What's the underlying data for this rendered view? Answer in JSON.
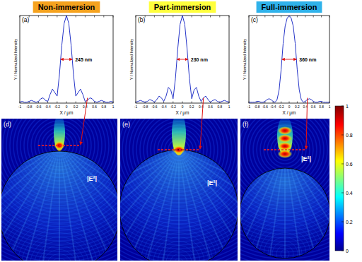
{
  "chart_data": [
    {
      "type": "line",
      "title": "Non-immersion",
      "panel_label": "(a)",
      "x_label": "X / μm",
      "y_label": "Y / Normalized Intensity",
      "annotation": "245 nm",
      "x": [
        -1,
        -0.95,
        -0.9,
        -0.85,
        -0.8,
        -0.75,
        -0.7,
        -0.65,
        -0.6,
        -0.55,
        -0.5,
        -0.45,
        -0.4,
        -0.35,
        -0.3,
        -0.25,
        -0.2,
        -0.15,
        -0.1,
        -0.05,
        0,
        0.05,
        0.1,
        0.15,
        0.2,
        0.25,
        0.3,
        0.35,
        0.4,
        0.45,
        0.5,
        0.55,
        0.6,
        0.65,
        0.7,
        0.75,
        0.8,
        0.85,
        0.9,
        0.95,
        1
      ],
      "values": [
        0.01,
        0.02,
        0.01,
        0.01,
        0.02,
        0.03,
        0.02,
        0.01,
        0.02,
        0.05,
        0.06,
        0.03,
        0.02,
        0.1,
        0.16,
        0.12,
        0.08,
        0.33,
        0.66,
        0.91,
        1,
        0.91,
        0.66,
        0.33,
        0.08,
        0.12,
        0.16,
        0.1,
        0.02,
        0.03,
        0.06,
        0.05,
        0.02,
        0.01,
        0.02,
        0.03,
        0.02,
        0.01,
        0.01,
        0.02,
        0.01
      ],
      "color": "#2433c8",
      "xlim": [
        -1,
        1
      ],
      "ylim": [
        0,
        1
      ],
      "xticks": [
        -1,
        -0.8,
        -0.6,
        -0.4,
        -0.2,
        0,
        0.2,
        0.4,
        0.6,
        0.8,
        1
      ],
      "tick_labels": "x"
    },
    {
      "type": "line",
      "title": "Part-immersion",
      "panel_label": "(b)",
      "x_label": "X / μm",
      "y_label": "Y / Normalized Intensity",
      "annotation": "230 nm",
      "x": [
        -1,
        -0.95,
        -0.9,
        -0.85,
        -0.8,
        -0.75,
        -0.7,
        -0.65,
        -0.6,
        -0.55,
        -0.5,
        -0.45,
        -0.4,
        -0.35,
        -0.3,
        -0.25,
        -0.2,
        -0.15,
        -0.1,
        -0.05,
        0,
        0.05,
        0.1,
        0.15,
        0.2,
        0.25,
        0.3,
        0.35,
        0.4,
        0.45,
        0.5,
        0.55,
        0.6,
        0.65,
        0.7,
        0.75,
        0.8,
        0.85,
        0.9,
        0.95,
        1
      ],
      "values": [
        0.01,
        0.02,
        0.03,
        0.02,
        0.01,
        0.02,
        0.04,
        0.03,
        0.01,
        0.04,
        0.08,
        0.06,
        0.02,
        0.08,
        0.18,
        0.15,
        0.05,
        0.28,
        0.62,
        0.9,
        1,
        0.9,
        0.62,
        0.28,
        0.05,
        0.15,
        0.18,
        0.08,
        0.02,
        0.06,
        0.08,
        0.04,
        0.01,
        0.03,
        0.04,
        0.02,
        0.01,
        0.02,
        0.03,
        0.02,
        0.01
      ],
      "color": "#2433c8",
      "xlim": [
        -1,
        1
      ],
      "ylim": [
        0,
        1
      ],
      "xticks": [
        -1,
        -0.8,
        -0.6,
        -0.4,
        -0.2,
        0,
        0.2,
        0.4,
        0.6,
        0.8,
        1
      ],
      "tick_labels": "x"
    },
    {
      "type": "line",
      "title": "Full-immersion",
      "panel_label": "(c)",
      "x_label": "X / μm",
      "y_label": "Y / Normalized Intensity",
      "annotation": "360 nm",
      "x": [
        -1,
        -0.95,
        -0.9,
        -0.85,
        -0.8,
        -0.75,
        -0.7,
        -0.65,
        -0.6,
        -0.55,
        -0.5,
        -0.45,
        -0.4,
        -0.35,
        -0.3,
        -0.25,
        -0.2,
        -0.15,
        -0.1,
        -0.05,
        0,
        0.05,
        0.1,
        0.15,
        0.2,
        0.25,
        0.3,
        0.35,
        0.4,
        0.45,
        0.5,
        0.55,
        0.6,
        0.65,
        0.7,
        0.75,
        0.8,
        0.85,
        0.9,
        0.95,
        1
      ],
      "values": [
        0.01,
        0.01,
        0.01,
        0.01,
        0.02,
        0.02,
        0.01,
        0.01,
        0.02,
        0.04,
        0.05,
        0.04,
        0.02,
        0.01,
        0.04,
        0.15,
        0.38,
        0.68,
        0.88,
        0.97,
        1,
        0.97,
        0.88,
        0.68,
        0.38,
        0.15,
        0.04,
        0.01,
        0.02,
        0.04,
        0.05,
        0.04,
        0.02,
        0.01,
        0.01,
        0.02,
        0.02,
        0.01,
        0.01,
        0.01,
        0.01
      ],
      "color": "#2433c8",
      "xlim": [
        -1,
        1
      ],
      "ylim": [
        0,
        1
      ],
      "xticks": [
        -1,
        -0.8,
        -0.6,
        -0.4,
        -0.2,
        0,
        0.2,
        0.4,
        0.6,
        0.8,
        1
      ],
      "tick_labels": "x"
    }
  ],
  "field_maps": [
    {
      "panel_label": "(d)",
      "field_label": "|E²|"
    },
    {
      "panel_label": "(e)",
      "field_label": "|E²|"
    },
    {
      "panel_label": "(f)",
      "field_label": "|E²|"
    }
  ],
  "colorbar": {
    "range": [
      0,
      1
    ],
    "ticks": [
      0,
      0.2,
      0.4,
      0.6,
      0.8,
      1
    ]
  }
}
